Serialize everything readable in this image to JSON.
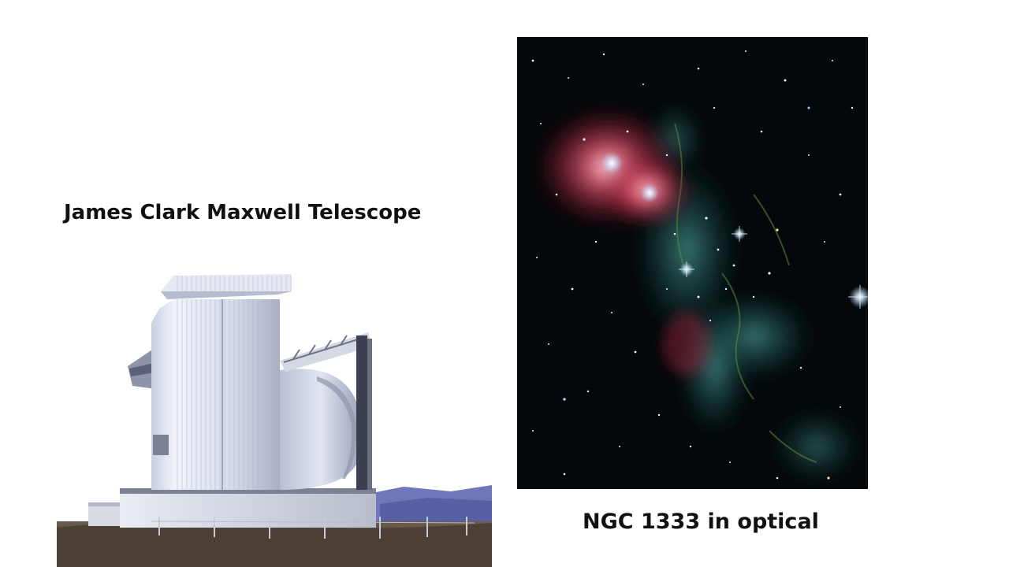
{
  "slide": {
    "telescope_caption": "James Clark Maxwell Telescope",
    "nebula_caption": "NGC 1333 in optical"
  },
  "images": {
    "telescope": {
      "subject": "observatory-building",
      "colors": {
        "sky": "#ffffff",
        "cladding": "#dfe4ee",
        "cladding_shadow": "#a7aec0",
        "dome": "#cfd5e6",
        "ground": "#5a4d42",
        "mountains": "#6f77b8"
      }
    },
    "nebula": {
      "subject": "star-field-nebula",
      "colors": {
        "space": "#05080a",
        "red_glow": "#e8506b",
        "teal_gas": "#2f7f78",
        "star": "#e8f4ff"
      }
    }
  }
}
